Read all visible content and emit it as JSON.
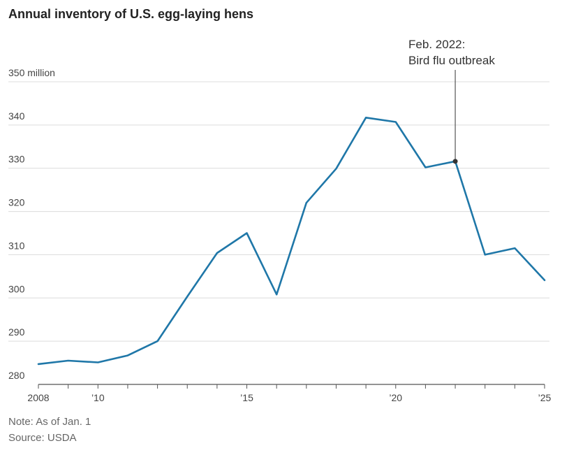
{
  "title": "Annual inventory of U.S. egg-laying hens",
  "note": "Note: As of Jan. 1",
  "source": "Source: USDA",
  "colors": {
    "line": "#1f77a8",
    "grid": "#dcdcdc",
    "axis": "#555555",
    "marker": "#333333"
  },
  "chart_data": {
    "type": "line",
    "title": "Annual inventory of U.S. egg-laying hens",
    "xlabel": "",
    "ylabel": "",
    "x": [
      2008,
      2009,
      2010,
      2011,
      2012,
      2013,
      2014,
      2015,
      2016,
      2017,
      2018,
      2019,
      2020,
      2021,
      2022,
      2023,
      2024,
      2025
    ],
    "series": [
      {
        "values": [
          284.7,
          285.5,
          285.1,
          286.7,
          290.0,
          300.3,
          310.4,
          315.0,
          300.8,
          322.0,
          329.9,
          341.7,
          340.7,
          330.2,
          331.6,
          310.0,
          311.5,
          304.1
        ]
      }
    ],
    "ylim": [
      280,
      350
    ],
    "xlim": [
      2008,
      2025
    ],
    "y_ticks": [
      {
        "value": 350,
        "label": "350 million"
      },
      {
        "value": 340,
        "label": "340"
      },
      {
        "value": 330,
        "label": "330"
      },
      {
        "value": 320,
        "label": "320"
      },
      {
        "value": 310,
        "label": "310"
      },
      {
        "value": 300,
        "label": "300"
      },
      {
        "value": 290,
        "label": "290"
      },
      {
        "value": 280,
        "label": "280"
      }
    ],
    "x_ticks": [
      {
        "value": 2008,
        "label": "2008"
      },
      {
        "value": 2010,
        "label": "’10"
      },
      {
        "value": 2015,
        "label": "’15"
      },
      {
        "value": 2020,
        "label": "’20"
      },
      {
        "value": 2025,
        "label": "’25"
      }
    ],
    "grid": true,
    "annotation": {
      "x": 2022,
      "y": 331.6,
      "lines": [
        "Feb. 2022:",
        "Bird flu outbreak"
      ]
    }
  }
}
